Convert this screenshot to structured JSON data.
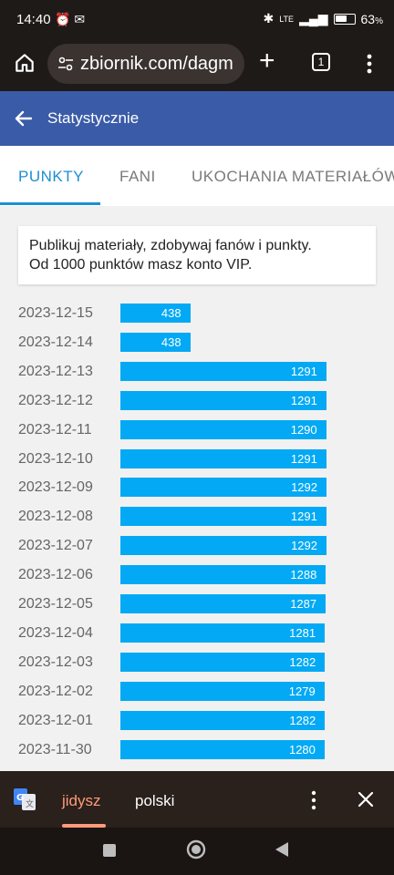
{
  "status": {
    "time": "14:40",
    "battery": "63",
    "battery_unit": "%",
    "battery_level": 0.63,
    "network": "LTE"
  },
  "browser": {
    "url": "zbiornik.com/dagm",
    "tab_count": "1"
  },
  "header": {
    "title": "Statystycznie"
  },
  "tabs": [
    {
      "label": "PUNKTY",
      "active": true
    },
    {
      "label": "FANI",
      "active": false
    },
    {
      "label": "UKOCHANIA MATERIAŁÓW",
      "active": false
    }
  ],
  "info": {
    "line1": "Publikuj materiały, zdobywaj fanów i punkty.",
    "line2": "Od 1000 punktów masz konto VIP."
  },
  "chart_data": {
    "type": "bar",
    "orientation": "horizontal",
    "categories": [
      "2023-12-15",
      "2023-12-14",
      "2023-12-13",
      "2023-12-12",
      "2023-12-11",
      "2023-12-10",
      "2023-12-09",
      "2023-12-08",
      "2023-12-07",
      "2023-12-06",
      "2023-12-05",
      "2023-12-04",
      "2023-12-03",
      "2023-12-02",
      "2023-12-01",
      "2023-11-30"
    ],
    "values": [
      438,
      438,
      1291,
      1291,
      1290,
      1291,
      1292,
      1291,
      1292,
      1288,
      1287,
      1281,
      1282,
      1279,
      1282,
      1280
    ],
    "max": 1292,
    "bar_color": "#03a9f4"
  },
  "translate": {
    "languages": [
      {
        "label": "jidysz",
        "active": true
      },
      {
        "label": "polski",
        "active": false
      }
    ]
  }
}
